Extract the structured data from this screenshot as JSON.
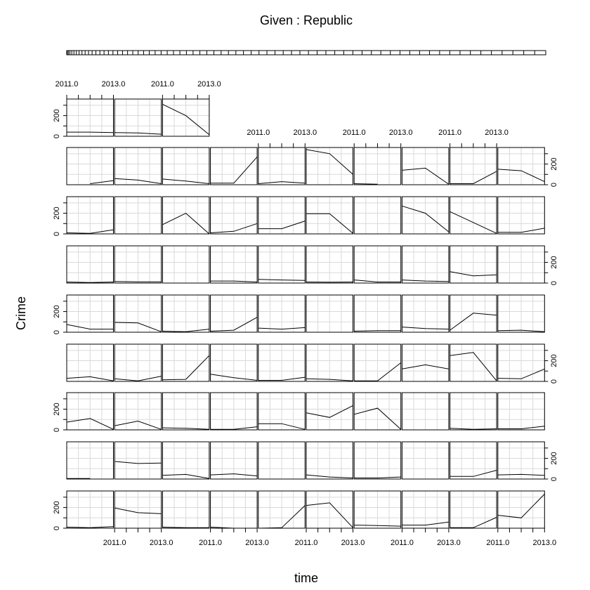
{
  "chart_data": {
    "type": "line",
    "title": "Given : Republic",
    "xlabel": "time",
    "ylabel": "Crime",
    "x": [
      2011,
      2012,
      2013
    ],
    "xlim": [
      2011,
      2013
    ],
    "ylim": [
      0,
      360
    ],
    "x_tick_labels": [
      "2011.0",
      "2013.0"
    ],
    "y_tick_labels": [
      "0",
      "200"
    ],
    "grid": true,
    "rows": [
      {
        "row": 1,
        "panels": [
          [
            40,
            40,
            35
          ],
          [
            35,
            32,
            20
          ],
          [
            310,
            200,
            15
          ]
        ]
      },
      {
        "row": 2,
        "panels": [
          [
            null,
            10,
            40
          ],
          [
            60,
            45,
            10
          ],
          [
            55,
            35,
            10
          ],
          [
            15,
            15,
            270
          ],
          [
            10,
            30,
            15
          ],
          [
            340,
            300,
            100
          ],
          [
            10,
            5,
            null
          ],
          [
            140,
            160,
            5
          ],
          [
            10,
            10,
            130
          ],
          [
            150,
            135,
            30
          ]
        ]
      },
      {
        "row": 3,
        "panels": [
          [
            10,
            5,
            40
          ],
          [
            null,
            null,
            null
          ],
          [
            90,
            200,
            0
          ],
          [
            10,
            25,
            100
          ],
          [
            50,
            50,
            125
          ],
          [
            195,
            195,
            5
          ],
          [
            null,
            null,
            null
          ],
          [
            270,
            200,
            20
          ],
          [
            215,
            110,
            5
          ],
          [
            15,
            15,
            55
          ]
        ]
      },
      {
        "row": 4,
        "panels": [
          [
            10,
            5,
            10
          ],
          [
            15,
            12,
            12
          ],
          [
            null,
            null,
            null
          ],
          [
            20,
            20,
            10
          ],
          [
            35,
            30,
            25
          ],
          [
            10,
            8,
            10
          ],
          [
            30,
            10,
            10
          ],
          [
            30,
            20,
            15
          ],
          [
            110,
            70,
            80
          ],
          [
            null,
            null,
            null
          ]
        ]
      },
      {
        "row": 5,
        "panels": [
          [
            75,
            30,
            30
          ],
          [
            95,
            90,
            5
          ],
          [
            10,
            5,
            30
          ],
          [
            10,
            20,
            145
          ],
          [
            40,
            30,
            45
          ],
          [
            null,
            null,
            null
          ],
          [
            10,
            15,
            15
          ],
          [
            50,
            35,
            30
          ],
          [
            20,
            185,
            165
          ],
          [
            15,
            20,
            5
          ]
        ]
      },
      {
        "row": 6,
        "panels": [
          [
            30,
            45,
            5
          ],
          [
            25,
            5,
            50
          ],
          [
            15,
            20,
            250
          ],
          [
            70,
            35,
            10
          ],
          [
            10,
            10,
            40
          ],
          [
            25,
            20,
            5
          ],
          [
            5,
            5,
            180
          ],
          [
            120,
            160,
            120
          ],
          [
            250,
            280,
            5
          ],
          [
            30,
            25,
            120
          ]
        ]
      },
      {
        "row": 7,
        "panels": [
          [
            75,
            110,
            5
          ],
          [
            40,
            85,
            5
          ],
          [
            20,
            15,
            5
          ],
          [
            5,
            5,
            30
          ],
          [
            60,
            60,
            5
          ],
          [
            165,
            120,
            235
          ],
          [
            150,
            210,
            5
          ],
          [
            null,
            null,
            null
          ],
          [
            15,
            5,
            10
          ],
          [
            10,
            10,
            35
          ]
        ]
      },
      {
        "row": 8,
        "panels": [
          [
            5,
            5,
            null
          ],
          [
            170,
            150,
            155
          ],
          [
            35,
            45,
            5
          ],
          [
            40,
            50,
            30
          ],
          [
            null,
            null,
            null
          ],
          [
            40,
            20,
            10
          ],
          [
            10,
            10,
            20
          ],
          [
            null,
            null,
            null
          ],
          [
            25,
            25,
            85
          ],
          [
            40,
            45,
            35
          ]
        ]
      },
      {
        "row": 9,
        "panels": [
          [
            10,
            5,
            15
          ],
          [
            195,
            150,
            140
          ],
          [
            10,
            5,
            5
          ],
          [
            10,
            0,
            null
          ],
          [
            0,
            5,
            220
          ],
          [
            220,
            245,
            5
          ],
          [
            30,
            25,
            20
          ],
          [
            30,
            30,
            60
          ],
          [
            5,
            5,
            105
          ],
          [
            125,
            100,
            330
          ]
        ]
      }
    ]
  }
}
